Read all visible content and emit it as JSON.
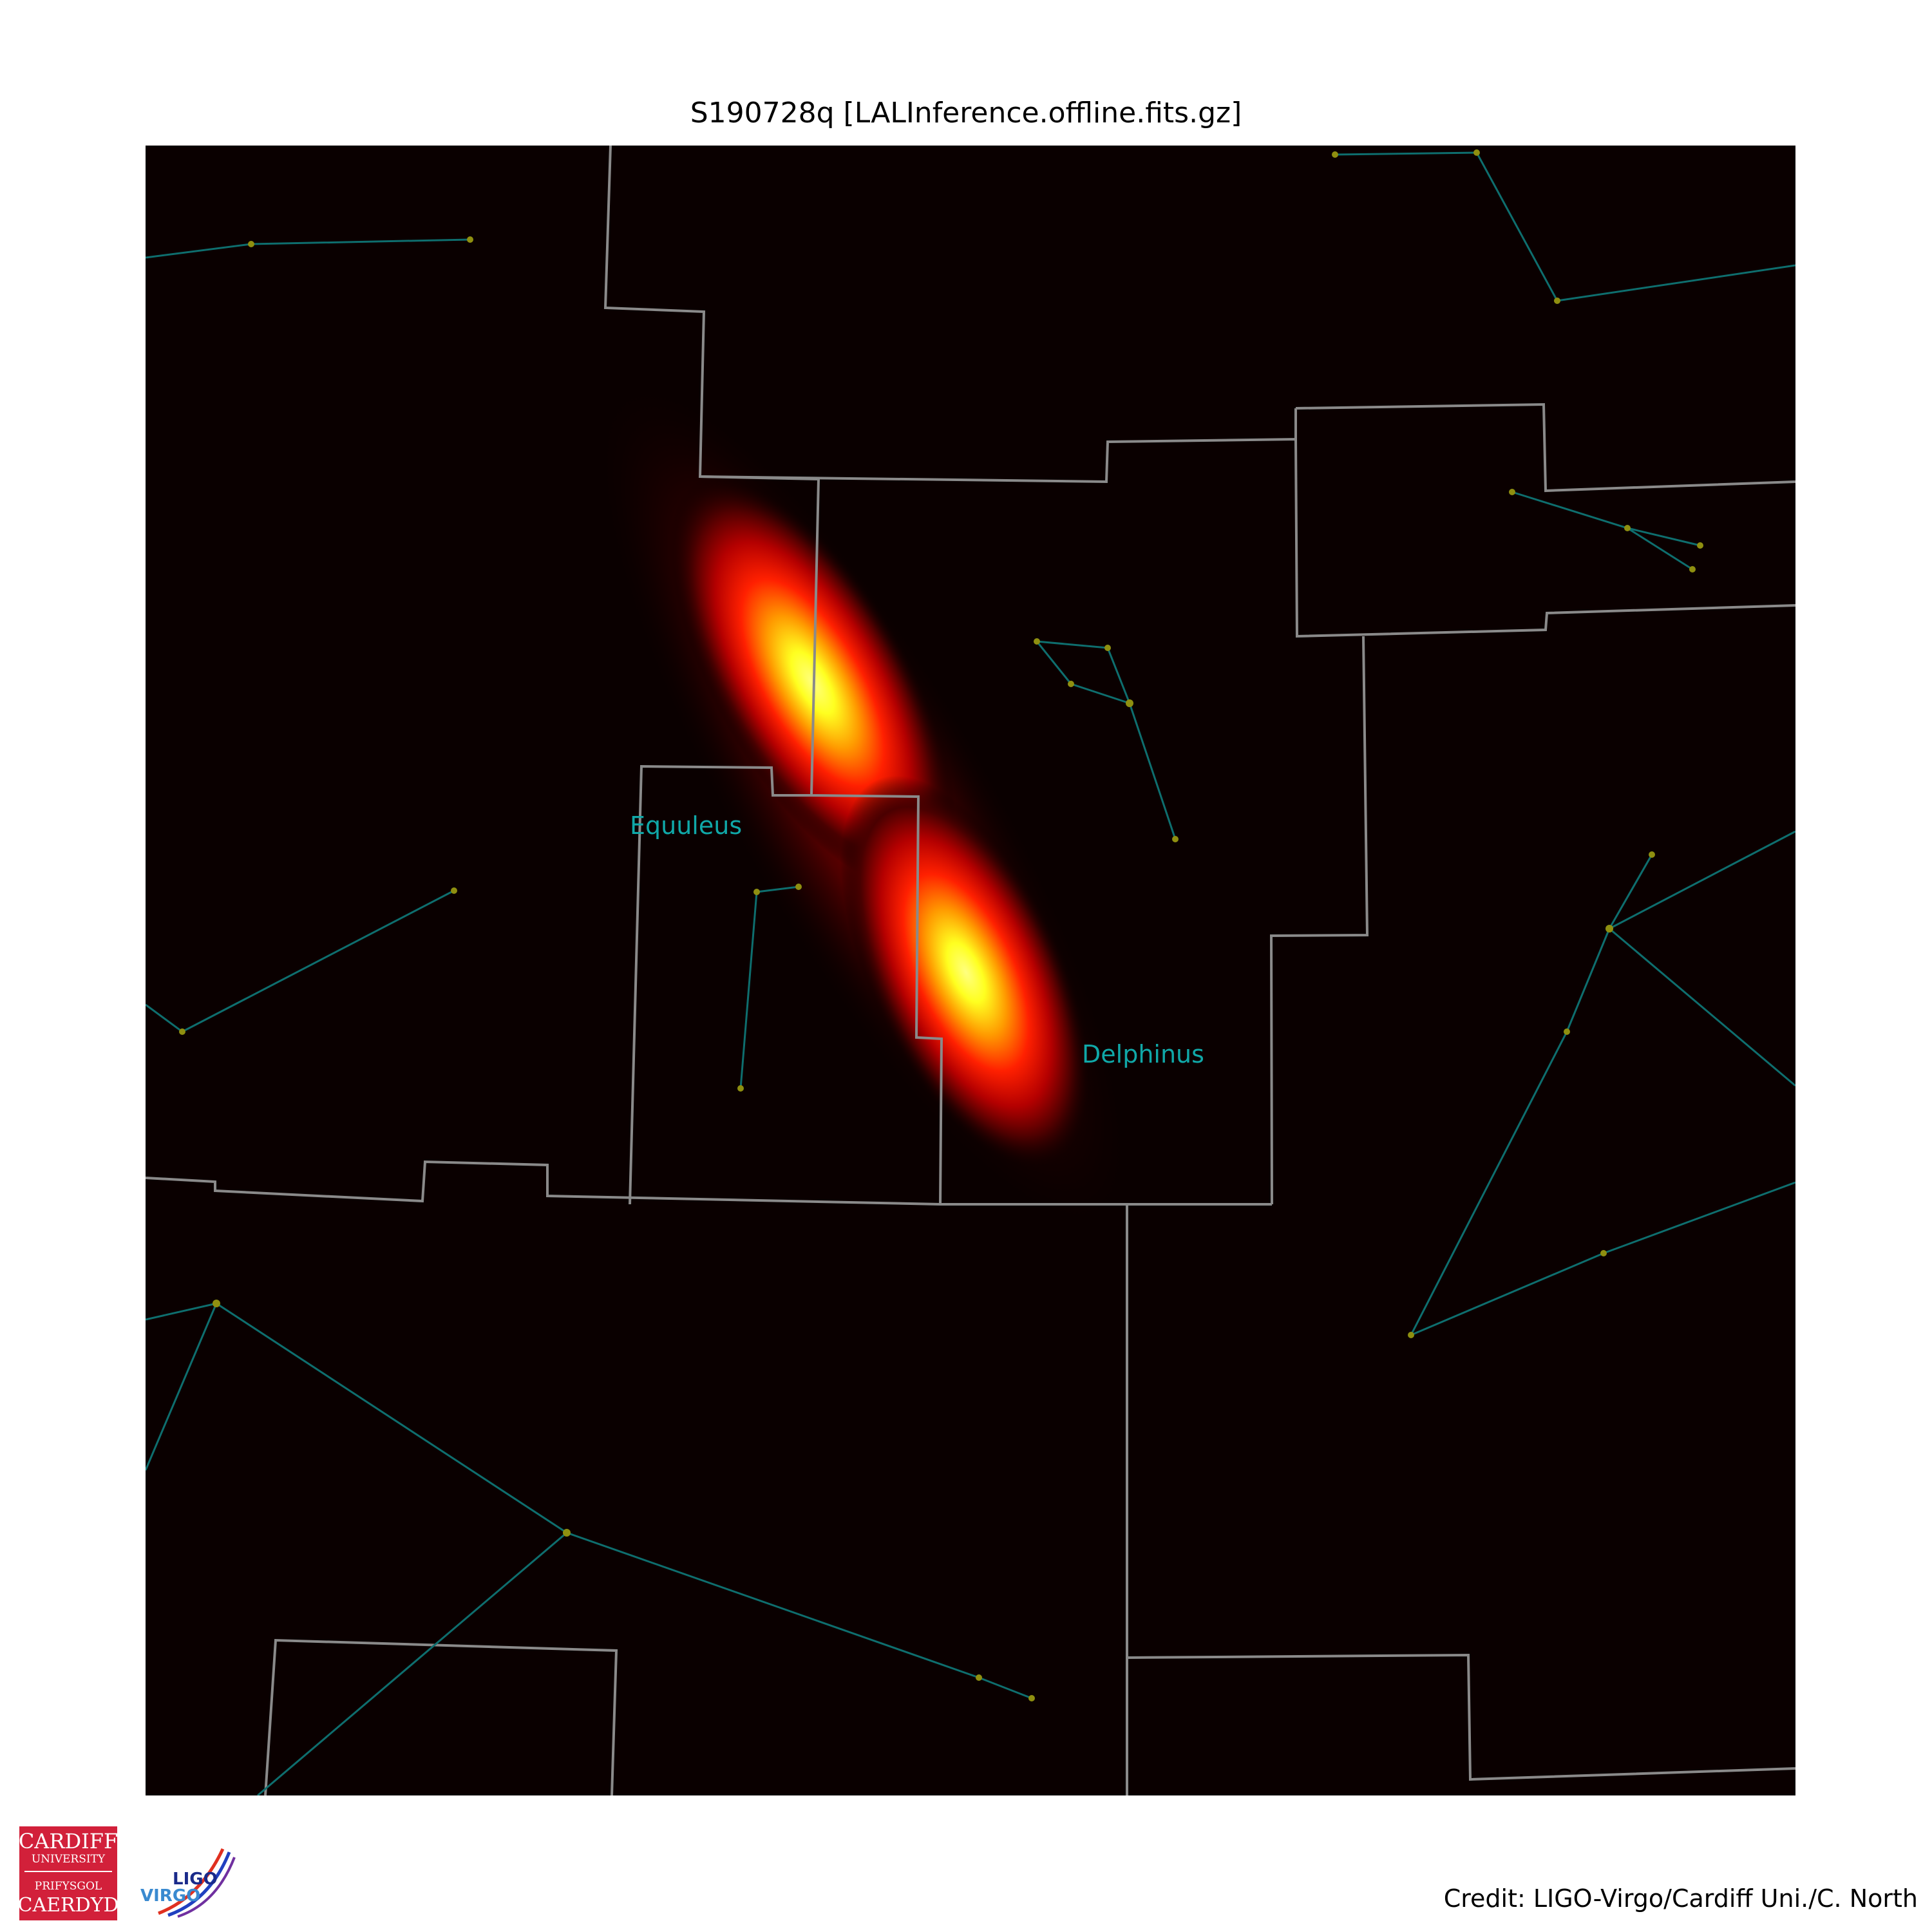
{
  "title": "S190728q [LALInference.offline.fits.gz]",
  "credit": "Credit: LIGO-Virgo/Cardiff Uni./C. North",
  "constellation_labels": [
    "Equuleus",
    "Delphinus"
  ],
  "logos": {
    "cardiff_line1": "CARDIFF",
    "cardiff_line2": "UNIVERSITY",
    "cardiff_line3": "PRIFYSGOL",
    "cardiff_line4": "CAERDYD",
    "ligo": "LIGO",
    "virgo": "VIRGO"
  },
  "colors": {
    "sky_background": "#0a0000",
    "boundary_lines": "#8a8a8a",
    "constellation_lines": "#0e6e6e",
    "stars": "#8f8f10",
    "labels": "#10a8a8",
    "cardiff_red": "#d2203a",
    "probability_colormap": [
      "#0a0000",
      "#5a0000",
      "#c00000",
      "#ff2000",
      "#ff9000",
      "#ffff40"
    ]
  }
}
